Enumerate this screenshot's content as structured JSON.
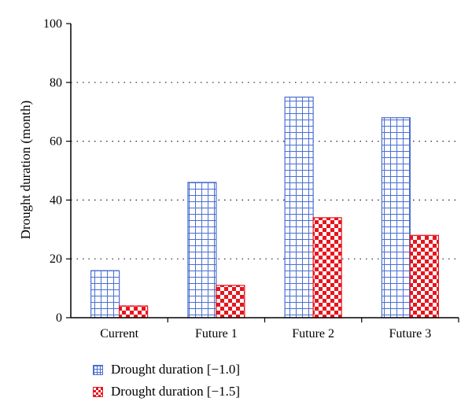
{
  "chart_data": {
    "type": "bar",
    "categories": [
      "Current",
      "Future 1",
      "Future 2",
      "Future 3"
    ],
    "series": [
      {
        "name": "Drought duration [−1.0]",
        "values": [
          16,
          46,
          75,
          68
        ],
        "color": "#4a6fd1"
      },
      {
        "name": "Drought duration [−1.5]",
        "values": [
          4,
          11,
          34,
          28
        ],
        "color": "#e8141c"
      }
    ],
    "title": "",
    "xlabel": "",
    "ylabel": "Drought duration (month)",
    "ylim": [
      0,
      100
    ],
    "yticks": [
      0,
      20,
      40,
      60,
      80,
      100
    ],
    "grid": "horizontal dotted",
    "legend": "bottom-left"
  }
}
